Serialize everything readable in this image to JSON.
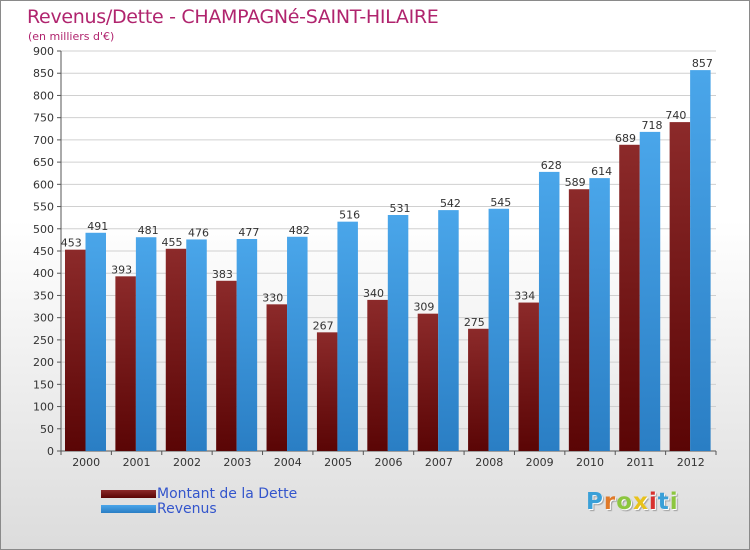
{
  "chart_data": {
    "type": "bar",
    "title": "Revenus/Dette - CHAMPAGNé-SAINT-HILAIRE",
    "subtitle": "(en milliers d'€)",
    "xlabel": "",
    "ylabel": "",
    "ylim": [
      0,
      900
    ],
    "yticks": [
      0,
      50,
      100,
      150,
      200,
      250,
      300,
      350,
      400,
      450,
      500,
      550,
      600,
      650,
      700,
      750,
      800,
      850,
      900
    ],
    "grid": true,
    "legend_position": "bottom-left",
    "categories": [
      "2000",
      "2001",
      "2002",
      "2003",
      "2004",
      "2005",
      "2006",
      "2007",
      "2008",
      "2009",
      "2010",
      "2011",
      "2012"
    ],
    "series": [
      {
        "name": "Montant de la Dette",
        "color": "#7a1a1a",
        "values": [
          453,
          393,
          455,
          383,
          330,
          267,
          340,
          309,
          275,
          334,
          589,
          689,
          740
        ]
      },
      {
        "name": "Revenus",
        "color": "#3d9ae0",
        "values": [
          491,
          481,
          476,
          477,
          482,
          516,
          531,
          542,
          545,
          628,
          614,
          718,
          857
        ]
      }
    ]
  },
  "logo": {
    "letters": [
      "P",
      "r",
      "o",
      "x",
      "i",
      "t",
      "i"
    ],
    "colors": [
      "#3aa0d8",
      "#e07a2a",
      "#8cc63f",
      "#e8c21c",
      "#d8312e",
      "#3aa0d8",
      "#8cc63f"
    ]
  }
}
